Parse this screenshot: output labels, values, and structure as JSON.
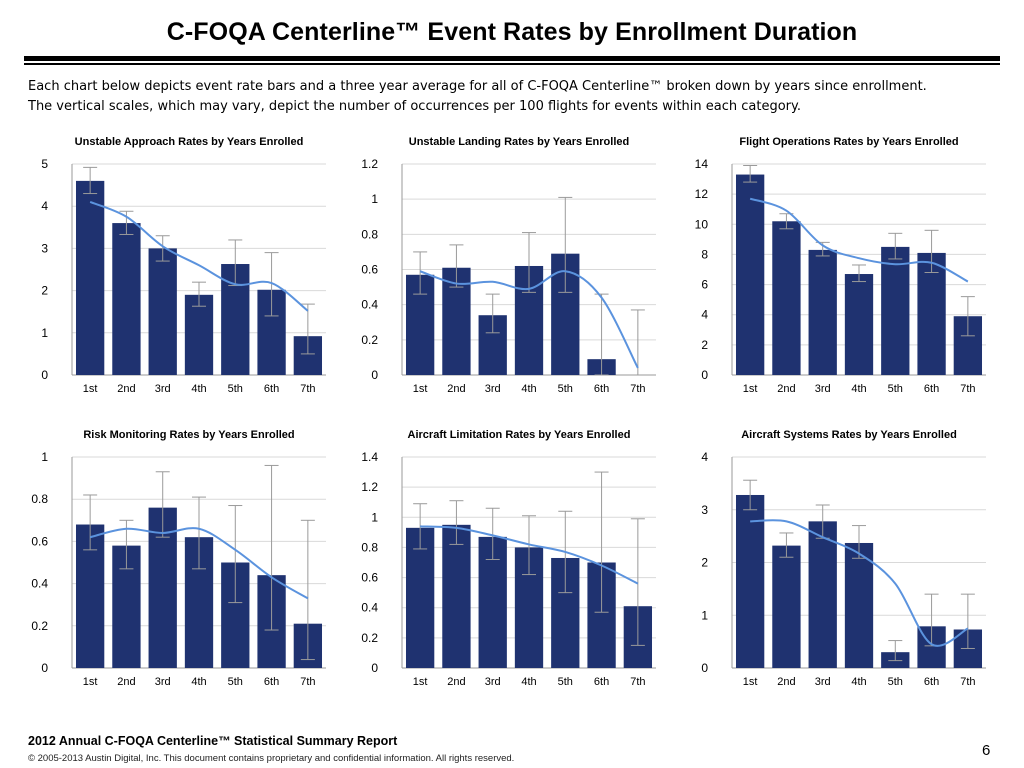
{
  "page": {
    "title": "C-FOQA Centerline™ Event Rates by Enrollment Duration",
    "intro_line1": "Each chart below depicts event rate bars and a three year average for all of C-FOQA Centerline™ broken down by years since enrollment.",
    "intro_line2": "The vertical scales, which may vary, depict the number of occurrences per 100 flights for events within each category.",
    "footer_report": "2012 Annual C-FOQA Centerline™ Statistical Summary Report",
    "footer_copyright": "© 2005-2013 Austin Digital, Inc. This document contains proprietary and confidential information. All rights reserved.",
    "page_number": "6"
  },
  "colors": {
    "bar": "#1f3270",
    "average_line": "#5b93de",
    "error_bar": "#9a9a9a",
    "grid": "#d9d9d9"
  },
  "chart_data": [
    {
      "type": "bar",
      "title": "Unstable Approach Rates by Years Enrolled",
      "categories": [
        "1st",
        "2nd",
        "3rd",
        "4th",
        "5th",
        "6th",
        "7th"
      ],
      "values": [
        4.6,
        3.6,
        3.0,
        1.9,
        2.63,
        2.02,
        0.92
      ],
      "err_low": [
        4.3,
        3.33,
        2.7,
        1.63,
        2.12,
        1.4,
        0.5
      ],
      "err_high": [
        4.92,
        3.88,
        3.3,
        2.2,
        3.2,
        2.9,
        1.68
      ],
      "average": [
        4.1,
        3.75,
        3.05,
        2.6,
        2.15,
        2.18,
        1.52
      ],
      "ylim": [
        0,
        5
      ],
      "yticks": [
        0,
        1,
        2,
        3,
        4,
        5
      ],
      "grid": true
    },
    {
      "type": "bar",
      "title": "Unstable Landing Rates by Years Enrolled",
      "categories": [
        "1st",
        "2nd",
        "3rd",
        "4th",
        "5th",
        "6th",
        "7th"
      ],
      "values": [
        0.57,
        0.61,
        0.34,
        0.62,
        0.69,
        0.09,
        0.0
      ],
      "err_low": [
        0.46,
        0.5,
        0.24,
        0.47,
        0.47,
        0.0,
        0.0
      ],
      "err_high": [
        0.7,
        0.74,
        0.46,
        0.81,
        1.01,
        0.46,
        0.37
      ],
      "average": [
        0.59,
        0.52,
        0.53,
        0.49,
        0.59,
        0.44,
        0.04
      ],
      "ylim": [
        0,
        1.2
      ],
      "yticks": [
        0,
        0.2,
        0.4,
        0.6,
        0.8,
        1,
        1.2
      ],
      "grid": true
    },
    {
      "type": "bar",
      "title": "Flight Operations Rates by Years Enrolled",
      "categories": [
        "1st",
        "2nd",
        "3rd",
        "4th",
        "5th",
        "6th",
        "7th"
      ],
      "values": [
        13.3,
        10.2,
        8.3,
        6.7,
        8.5,
        8.1,
        3.9
      ],
      "err_low": [
        12.8,
        9.7,
        7.9,
        6.2,
        7.7,
        6.8,
        2.6
      ],
      "err_high": [
        13.9,
        10.7,
        8.8,
        7.3,
        9.4,
        9.6,
        5.2
      ],
      "average": [
        11.7,
        10.9,
        8.6,
        7.75,
        7.35,
        7.45,
        6.2
      ],
      "ylim": [
        0,
        14
      ],
      "yticks": [
        0,
        2,
        4,
        6,
        8,
        10,
        12,
        14
      ],
      "grid": true
    },
    {
      "type": "bar",
      "title": "Risk Monitoring Rates by Years Enrolled",
      "categories": [
        "1st",
        "2nd",
        "3rd",
        "4th",
        "5th",
        "6th",
        "7th"
      ],
      "values": [
        0.68,
        0.58,
        0.76,
        0.62,
        0.5,
        0.44,
        0.21
      ],
      "err_low": [
        0.56,
        0.47,
        0.62,
        0.47,
        0.31,
        0.18,
        0.04
      ],
      "err_high": [
        0.82,
        0.7,
        0.93,
        0.81,
        0.77,
        0.96,
        0.7
      ],
      "average": [
        0.62,
        0.66,
        0.64,
        0.66,
        0.56,
        0.43,
        0.33
      ],
      "ylim": [
        0,
        1
      ],
      "yticks": [
        0,
        0.2,
        0.4,
        0.6,
        0.8,
        1
      ],
      "grid": true
    },
    {
      "type": "bar",
      "title": "Aircraft Limitation Rates by Years Enrolled",
      "categories": [
        "1st",
        "2nd",
        "3rd",
        "4th",
        "5th",
        "6th",
        "7th"
      ],
      "values": [
        0.93,
        0.95,
        0.87,
        0.8,
        0.73,
        0.7,
        0.41
      ],
      "err_low": [
        0.79,
        0.82,
        0.72,
        0.62,
        0.5,
        0.37,
        0.15
      ],
      "err_high": [
        1.09,
        1.11,
        1.06,
        1.01,
        1.04,
        1.3,
        0.99
      ],
      "average": [
        0.94,
        0.93,
        0.88,
        0.82,
        0.77,
        0.68,
        0.56
      ],
      "ylim": [
        0,
        1.4
      ],
      "yticks": [
        0,
        0.2,
        0.4,
        0.6,
        0.8,
        1,
        1.2,
        1.4
      ],
      "grid": true
    },
    {
      "type": "bar",
      "title": "Aircraft Systems Rates by Years Enrolled",
      "categories": [
        "1st",
        "2nd",
        "3rd",
        "4th",
        "5th",
        "6th",
        "7th"
      ],
      "values": [
        3.28,
        2.32,
        2.78,
        2.37,
        0.3,
        0.79,
        0.73
      ],
      "err_low": [
        3.0,
        2.1,
        2.46,
        2.08,
        0.14,
        0.42,
        0.37
      ],
      "err_high": [
        3.56,
        2.56,
        3.09,
        2.7,
        0.52,
        1.4,
        1.4
      ],
      "average": [
        2.78,
        2.78,
        2.48,
        2.17,
        1.6,
        0.45,
        0.75
      ],
      "ylim": [
        0,
        4
      ],
      "yticks": [
        0,
        1,
        2,
        3,
        4
      ],
      "grid": true
    }
  ]
}
